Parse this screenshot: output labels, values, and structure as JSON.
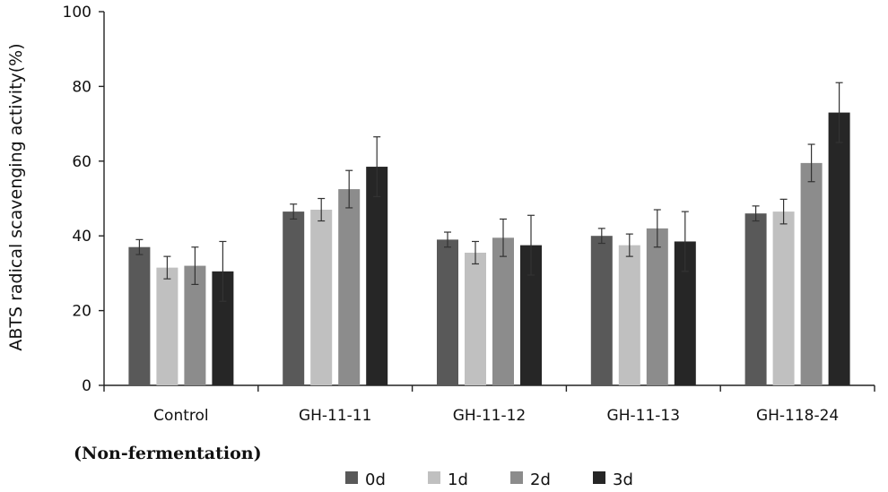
{
  "chart_data": {
    "type": "bar",
    "ylabel": "ABTS radical scavenging activity(%)",
    "ylim": [
      0,
      100
    ],
    "yticks": [
      "0",
      "20",
      "40",
      "60",
      "80",
      "100"
    ],
    "categories": [
      "Control",
      "GH-11-11",
      "GH-11-12",
      "GH-11-13",
      "GH-118-24"
    ],
    "annotation": "(Non-fermentation)",
    "legend_position": "bottom",
    "grid": false,
    "series": [
      {
        "name": "0d",
        "color": "#595959",
        "values": [
          37,
          46.5,
          39,
          40,
          46
        ],
        "errors": [
          2,
          2,
          2,
          2,
          2
        ]
      },
      {
        "name": "1d",
        "color": "#c0c0c0",
        "values": [
          31.5,
          47,
          35.5,
          37.5,
          46.5
        ],
        "errors": [
          3,
          3,
          3,
          3,
          3.3
        ]
      },
      {
        "name": "2d",
        "color": "#8c8c8c",
        "values": [
          32,
          52.5,
          39.5,
          42,
          59.5
        ],
        "errors": [
          5,
          5,
          5,
          5,
          5
        ]
      },
      {
        "name": "3d",
        "color": "#262626",
        "values": [
          30.5,
          58.5,
          37.5,
          38.5,
          73
        ],
        "errors": [
          8,
          8,
          8,
          8,
          8
        ]
      }
    ]
  }
}
